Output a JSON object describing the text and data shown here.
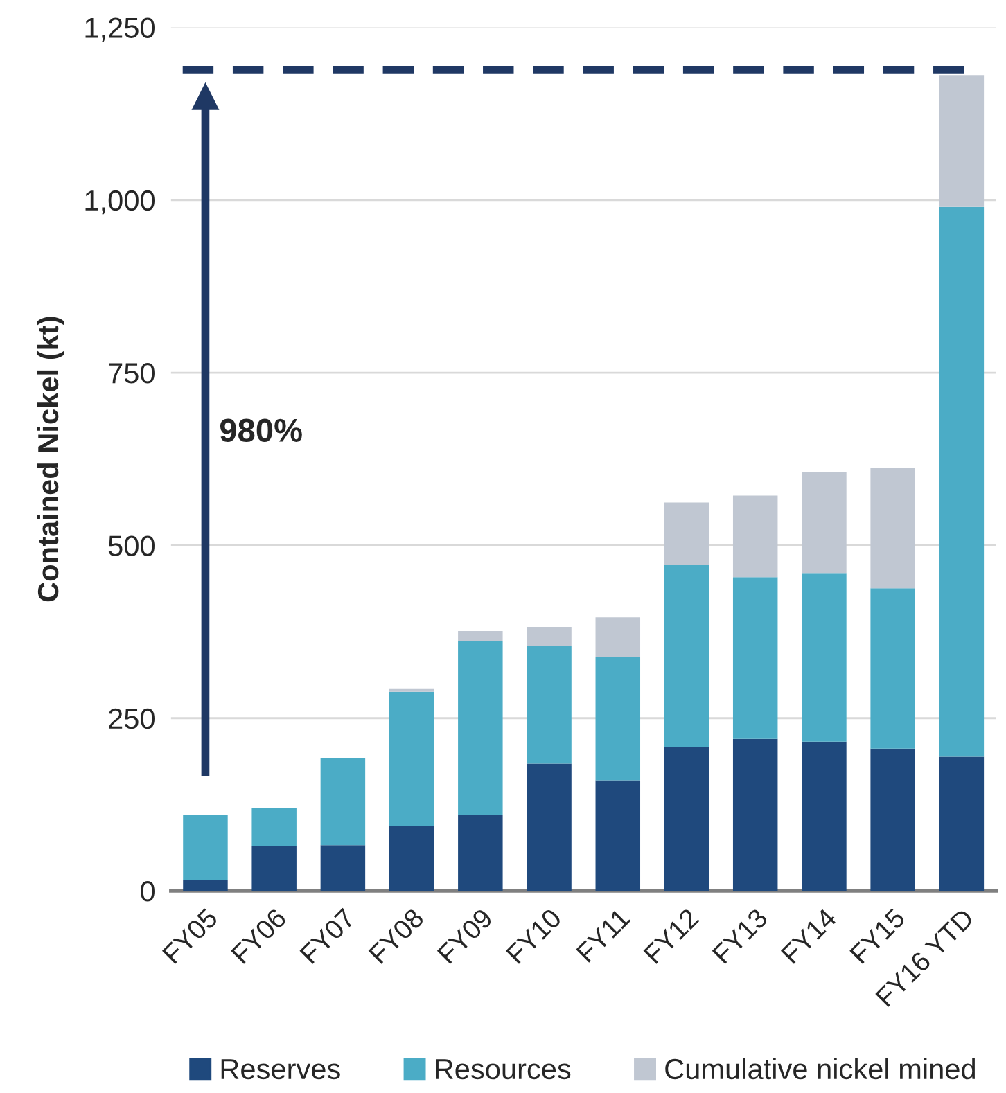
{
  "chart_data": {
    "type": "bar",
    "stacked": true,
    "ylabel": "Contained Nickel (kt)",
    "categories": [
      "FY05",
      "FY06",
      "FY07",
      "FY08",
      "FY09",
      "FY10",
      "FY11",
      "FY12",
      "FY13",
      "FY14",
      "FY15",
      "FY16 YTD"
    ],
    "series": [
      {
        "name": "Reserves",
        "color": "#1f497d",
        "values": [
          16,
          65,
          66,
          94,
          110,
          184,
          160,
          208,
          220,
          216,
          206,
          194
        ]
      },
      {
        "name": "Resources",
        "color": "#4bacc6",
        "values": [
          94,
          55,
          126,
          194,
          252,
          170,
          178,
          264,
          234,
          244,
          232,
          796
        ]
      },
      {
        "name": "Cumulative nickel mined",
        "color": "#c0c7d2",
        "values": [
          null,
          null,
          null,
          4,
          14,
          28,
          58,
          90,
          118,
          146,
          174,
          190
        ]
      }
    ],
    "ylim": [
      0,
      1250
    ],
    "yticks": [
      0,
      {
        "value": 250,
        "label": "250"
      },
      {
        "value": 500,
        "label": "500"
      },
      {
        "value": 750,
        "label": "750"
      },
      {
        "value": 1000,
        "label": "1,000"
      },
      {
        "value": 1250,
        "label": "1,250"
      }
    ],
    "grid": "y",
    "legend": "bottom",
    "ref_lines": [
      {
        "axis": "y",
        "value": 1188,
        "color": "#1f3864",
        "line_style": "dashed"
      }
    ],
    "annotations": [
      "980%"
    ]
  }
}
